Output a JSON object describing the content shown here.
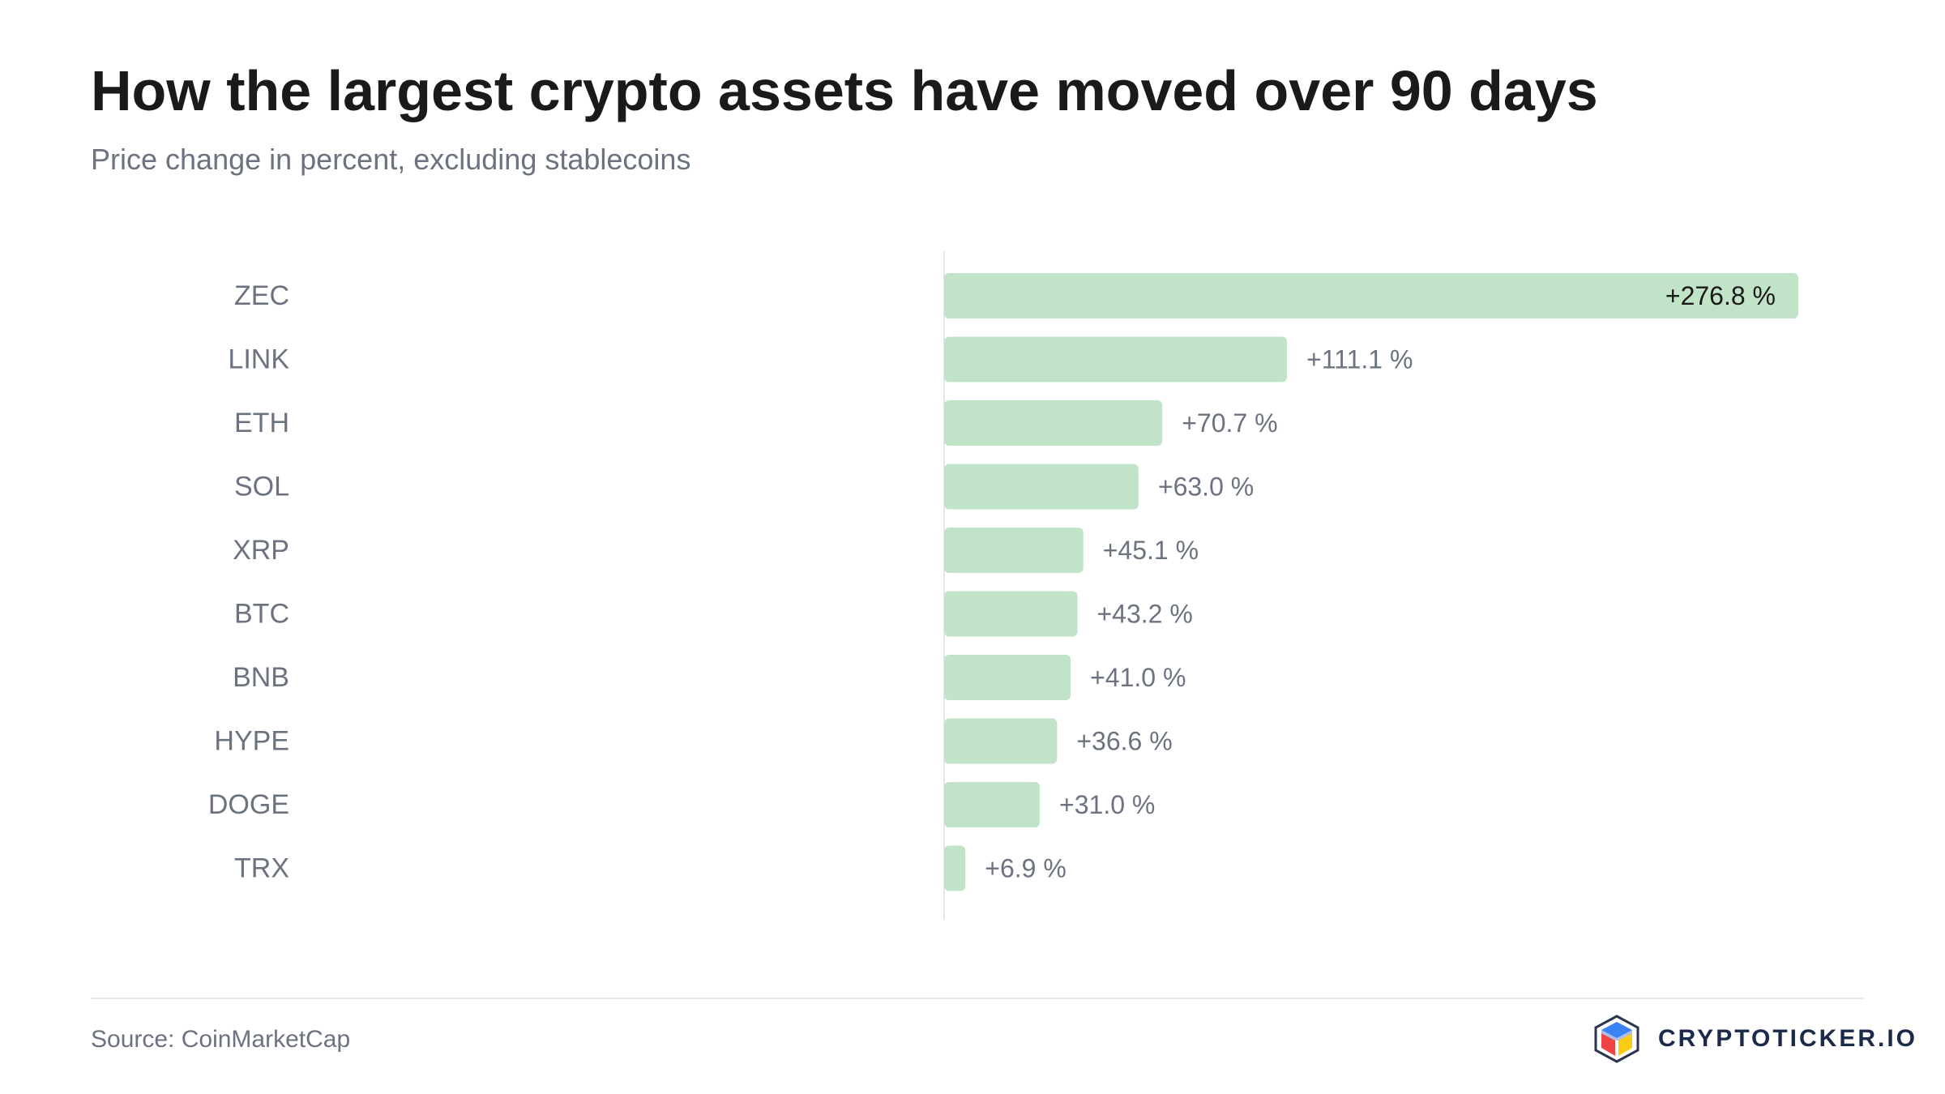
{
  "header": {
    "title": "How the largest crypto assets have moved over 90 days",
    "subtitle": "Price change in percent, excluding stablecoins"
  },
  "chart_data": {
    "type": "bar",
    "orientation": "horizontal",
    "categories": [
      "ZEC",
      "LINK",
      "ETH",
      "SOL",
      "XRP",
      "BTC",
      "BNB",
      "HYPE",
      "DOGE",
      "TRX"
    ],
    "values": [
      276.8,
      111.1,
      70.7,
      63.0,
      45.1,
      43.2,
      41.0,
      36.6,
      31.0,
      6.9
    ],
    "value_labels": [
      "+276.8 %",
      "+111.1 %",
      "+70.7 %",
      "+63.0 %",
      "+45.1 %",
      "+43.2 %",
      "+41.0 %",
      "+36.6 %",
      "+31.0 %",
      "+6.9 %"
    ],
    "xlim": [
      0,
      276.8
    ],
    "grid": false,
    "bar_color": "#c1e4c8",
    "label_color": "#6b7280",
    "inside_label_color": "#1a1a1a"
  },
  "footer": {
    "source": "Source: CoinMarketCap",
    "brand": "CRYPTOTICKER.IO",
    "brand_icon": "cube-logo-icon"
  }
}
